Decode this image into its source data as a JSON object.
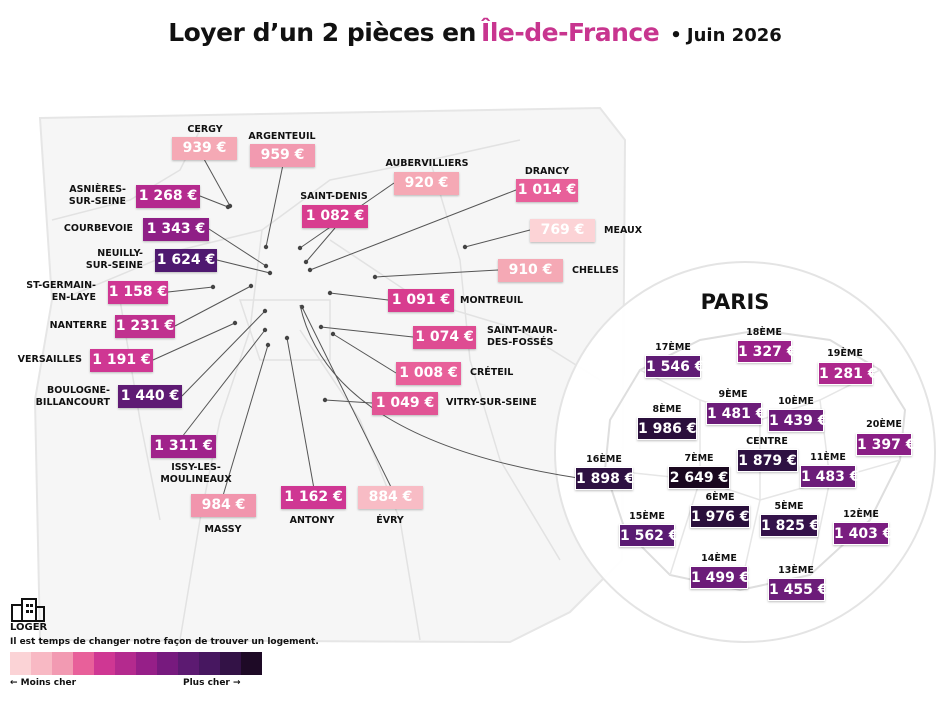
{
  "title": {
    "main": "Loyer d’un 2 pièces en",
    "accent": "Île-de-France",
    "separator": "•",
    "date": "Juin 2026"
  },
  "colors": {
    "accent": "#c8358f",
    "scale": [
      "#fbd3d6",
      "#f8b9c4",
      "#f29ab2",
      "#e8609a",
      "#cf3793",
      "#b42a8e",
      "#961f88",
      "#771a7e",
      "#5c1a71",
      "#471760",
      "#331246",
      "#1e0a26"
    ]
  },
  "legend": {
    "low": "← Moins cher",
    "high": "Plus cher →"
  },
  "brand": {
    "logo_icon": "building-logo-icon",
    "name": "LOGER",
    "tagline": "Il est temps de changer notre façon de trouver un logement."
  },
  "paris_title": "PARIS",
  "cities": [
    {
      "name": "CERGY",
      "rent": "939 €",
      "color": "#f5a9b5"
    },
    {
      "name": "ARGENTEUIL",
      "rent": "959 €",
      "color": "#f29ab0"
    },
    {
      "name": "AUBERVILLIERS",
      "rent": "920 €",
      "color": "#f5a9b5"
    },
    {
      "name": "DRANCY",
      "rent": "1 014 €",
      "color": "#e8609a"
    },
    {
      "name": "ASNIÈRES-\nSUR-SEINE",
      "rent": "1 268 €",
      "color": "#b42a8e"
    },
    {
      "name": "SAINT-DENIS",
      "rent": "1 082 €",
      "color": "#d83d8f"
    },
    {
      "name": "COURBEVOIE",
      "rent": "1 343 €",
      "color": "#8f1f86"
    },
    {
      "name": "MEAUX",
      "rent": "769 €",
      "color": "#fcd3d6"
    },
    {
      "name": "NEUILLY-\nSUR-SEINE",
      "rent": "1 624 €",
      "color": "#4f1970"
    },
    {
      "name": "CHELLES",
      "rent": "910 €",
      "color": "#f5a9b5"
    },
    {
      "name": "ST-GERMAIN-\nEN-LAYE",
      "rent": "1 158 €",
      "color": "#cf3793"
    },
    {
      "name": "MONTREUIL",
      "rent": "1 091 €",
      "color": "#d83d8f"
    },
    {
      "name": "NANTERRE",
      "rent": "1 231 €",
      "color": "#c0318f"
    },
    {
      "name": "SAINT-MAUR-\nDES-FOSSÉS",
      "rent": "1 074 €",
      "color": "#de4c92"
    },
    {
      "name": "VERSAILLES",
      "rent": "1 191 €",
      "color": "#cf3793"
    },
    {
      "name": "CRÉTEIL",
      "rent": "1 008 €",
      "color": "#e8609a"
    },
    {
      "name": "BOULOGNE-\nBILLANCOURT",
      "rent": "1 440 €",
      "color": "#5f1b74"
    },
    {
      "name": "VITRY-SUR-SEINE",
      "rent": "1 049 €",
      "color": "#e15595"
    },
    {
      "name": "ISSY-LES-\nMOULINEAUX",
      "rent": "1 311 €",
      "color": "#a0238b"
    },
    {
      "name": "MASSY",
      "rent": "984 €",
      "color": "#f195ad"
    },
    {
      "name": "ANTONY",
      "rent": "1 162 €",
      "color": "#cf3793"
    },
    {
      "name": "ÉVRY",
      "rent": "884 €",
      "color": "#f8bcc5"
    }
  ],
  "arrondissements": [
    {
      "name": "17ÈME",
      "rent": "1 546 €",
      "color": "#5f1b74"
    },
    {
      "name": "18ÈME",
      "rent": "1 327 €",
      "color": "#9a2189"
    },
    {
      "name": "19ÈME",
      "rent": "1 281 €",
      "color": "#ae288d"
    },
    {
      "name": "9ÈME",
      "rent": "1 481 €",
      "color": "#6c1c79"
    },
    {
      "name": "10ÈME",
      "rent": "1 439 €",
      "color": "#6c1c79"
    },
    {
      "name": "8ÈME",
      "rent": "1 986 €",
      "color": "#2a0f3c"
    },
    {
      "name": "20ÈME",
      "rent": "1 397 €",
      "color": "#8a1f85"
    },
    {
      "name": "CENTRE",
      "rent": "1 879 €",
      "color": "#2e1142"
    },
    {
      "name": "16ÈME",
      "rent": "1 898 €",
      "color": "#2e1142"
    },
    {
      "name": "7ÈME",
      "rent": "2 649 €",
      "color": "#1a081f"
    },
    {
      "name": "11ÈME",
      "rent": "1 483 €",
      "color": "#6c1c79"
    },
    {
      "name": "6ÈME",
      "rent": "1 976 €",
      "color": "#2a0f3c"
    },
    {
      "name": "5ÈME",
      "rent": "1 825 €",
      "color": "#34124a"
    },
    {
      "name": "15ÈME",
      "rent": "1 562 €",
      "color": "#5a1b72"
    },
    {
      "name": "12ÈME",
      "rent": "1 403 €",
      "color": "#7a1d80"
    },
    {
      "name": "14ÈME",
      "rent": "1 499 €",
      "color": "#6c1c79"
    },
    {
      "name": "13ÈME",
      "rent": "1 455 €",
      "color": "#6c1c79"
    }
  ]
}
